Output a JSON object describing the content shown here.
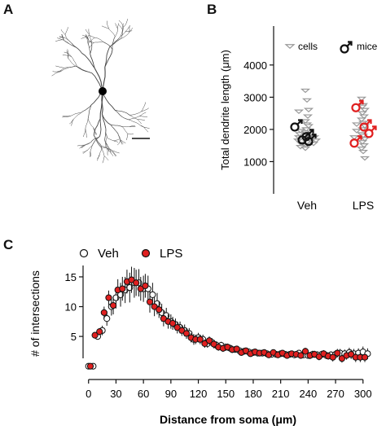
{
  "panels": {
    "a": "A",
    "b": "B",
    "c": "C"
  },
  "chart_data": [
    {
      "panel": "A",
      "type": "other"
    },
    {
      "panel": "B",
      "type": "scatter",
      "ylabel": "Total dendrite length (μm)",
      "ylim": [
        0,
        4400
      ],
      "yticks": [
        1000,
        2000,
        3000,
        4000
      ],
      "categories": [
        "Veh",
        "LPS"
      ],
      "legend": {
        "cells": "cells",
        "mice": "mice"
      },
      "series": [
        {
          "name": "cells",
          "color": "#999999",
          "marker": "triangle-down-open",
          "values": {
            "Veh": [
              3200,
              2900,
              2600,
              2550,
              2400,
              2250,
              2150,
              2100,
              2000,
              1950,
              1900,
              1850,
              1800,
              1750,
              1700,
              1650,
              1600,
              1550,
              1500,
              1450,
              1400,
              1750,
              1650,
              1550
            ],
            "LPS": [
              2950,
              2750,
              2600,
              2500,
              2400,
              2300,
              2200,
              2100,
              2000,
              1950,
              1850,
              1800,
              1700,
              1600,
              1500,
              1400,
              1300,
              1100,
              2700,
              2150,
              1750
            ]
          }
        },
        {
          "name": "mice",
          "values": {
            "Veh": {
              "color": "#111111",
              "values": [
                2150,
                1750,
                1700,
                1850
              ]
            },
            "LPS": {
              "color": "#e02020",
              "values": [
                2750,
                2150,
                1950,
                1650
              ]
            }
          }
        }
      ]
    },
    {
      "panel": "C",
      "type": "scatter",
      "xlabel": "Distance from soma (μm)",
      "ylabel": "# of intersections",
      "xlim": [
        -6,
        310
      ],
      "ylim": [
        -1,
        18
      ],
      "xticks": [
        0,
        30,
        60,
        90,
        120,
        150,
        180,
        210,
        240,
        270,
        300
      ],
      "yticks": [
        5,
        10,
        15
      ],
      "series": [
        {
          "name": "Veh",
          "color": "#ffffff",
          "stroke": "#111111",
          "x": [
            0,
            5,
            10,
            15,
            20,
            25,
            30,
            35,
            40,
            45,
            50,
            55,
            60,
            65,
            70,
            75,
            80,
            85,
            90,
            95,
            100,
            105,
            110,
            115,
            120,
            125,
            130,
            135,
            140,
            145,
            150,
            155,
            160,
            165,
            170,
            175,
            180,
            185,
            190,
            195,
            200,
            205,
            210,
            215,
            220,
            225,
            230,
            235,
            240,
            245,
            250,
            255,
            260,
            265,
            270,
            275,
            280,
            285,
            290,
            295,
            300,
            305
          ],
          "y": [
            0,
            0,
            5,
            6,
            8,
            10,
            11.5,
            12,
            12.8,
            13.2,
            14,
            14,
            13,
            13,
            12,
            10.5,
            9,
            8.5,
            7.5,
            7,
            6.5,
            6,
            5.5,
            4.5,
            4.8,
            4.5,
            3.8,
            4,
            3.5,
            3.5,
            3.2,
            3,
            2.8,
            2.6,
            2.5,
            2.4,
            2.3,
            2.2,
            2.2,
            2.1,
            2,
            2,
            2.1,
            2,
            2,
            1.9,
            2.2,
            1.9,
            1.8,
            2,
            1.9,
            2,
            1.8,
            1.9,
            2,
            2.2,
            2.1,
            2.3,
            2.1,
            2.2,
            2.4,
            2.1
          ],
          "err": [
            0.2,
            0.2,
            0.5,
            0.8,
            1.2,
            1.5,
            1.8,
            2,
            2.2,
            2.5,
            2.5,
            2.3,
            2.2,
            2.2,
            2,
            1.8,
            1.5,
            1.3,
            1.2,
            1,
            1,
            1,
            0.9,
            0.9,
            0.8,
            0.8,
            0.7,
            0.7,
            0.7,
            0.6,
            0.6,
            0.6,
            0.5,
            0.5,
            0.5,
            0.5,
            0.5,
            0.5,
            0.5,
            0.5,
            0.5,
            0.5,
            0.5,
            0.5,
            0.5,
            0.5,
            0.5,
            0.5,
            0.5,
            0.6,
            0.6,
            0.6,
            0.6,
            0.6,
            0.7,
            0.7,
            0.7,
            0.8,
            0.8,
            0.8,
            0.9,
            0.9
          ]
        },
        {
          "name": "LPS",
          "color": "#e02020",
          "stroke": "#111111",
          "x": [
            2,
            7,
            12,
            17,
            22,
            27,
            32,
            37,
            42,
            47,
            52,
            57,
            62,
            67,
            72,
            77,
            82,
            87,
            92,
            97,
            102,
            107,
            112,
            117,
            122,
            127,
            132,
            137,
            142,
            147,
            152,
            157,
            162,
            167,
            172,
            177,
            182,
            187,
            192,
            197,
            202,
            207,
            212,
            217,
            222,
            227,
            232,
            237,
            242,
            247,
            252,
            257,
            262,
            267,
            272,
            277,
            282,
            287,
            292,
            297,
            302
          ],
          "y": [
            0,
            5.2,
            5.8,
            9,
            11.5,
            10.2,
            12.8,
            13,
            14.2,
            14.5,
            14,
            13,
            13.5,
            10.8,
            10,
            9.5,
            8,
            7.5,
            7.2,
            6.5,
            6,
            5.5,
            4.8,
            4.5,
            4.5,
            3.8,
            4.3,
            3.7,
            3.2,
            3,
            3.2,
            2.8,
            2.9,
            2.3,
            2.6,
            2.1,
            2.4,
            2.2,
            2.3,
            1.9,
            2.3,
            1.9,
            2.2,
            1.8,
            2.1,
            2,
            1.8,
            2.5,
            1.8,
            2,
            1.6,
            2.1,
            1.7,
            1.5,
            2.2,
            1.3,
            1.8,
            2,
            1.5,
            1.5,
            1.5
          ],
          "err": [
            0.2,
            0.5,
            0.6,
            1,
            1.2,
            1.5,
            1.8,
            2,
            2,
            2.2,
            2.2,
            2,
            2,
            1.8,
            1.6,
            1.4,
            1.3,
            1.2,
            1.1,
            1,
            0.9,
            0.9,
            0.8,
            0.8,
            0.8,
            0.7,
            0.7,
            0.7,
            0.6,
            0.6,
            0.6,
            0.6,
            0.5,
            0.5,
            0.5,
            0.5,
            0.5,
            0.5,
            0.5,
            0.5,
            0.5,
            0.5,
            0.5,
            0.5,
            0.5,
            0.5,
            0.5,
            0.6,
            0.6,
            0.6,
            0.6,
            0.6,
            0.6,
            0.7,
            0.7,
            0.7,
            0.7,
            0.8,
            0.8,
            0.8,
            0.8
          ]
        }
      ]
    }
  ]
}
